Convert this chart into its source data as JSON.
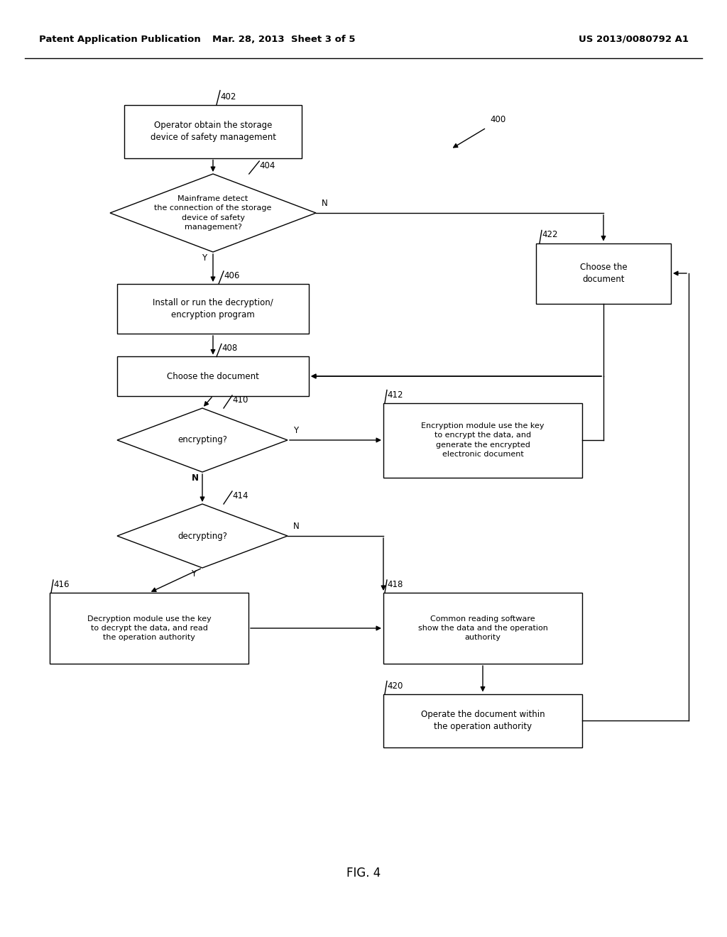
{
  "title_left": "Patent Application Publication",
  "title_mid": "Mar. 28, 2013  Sheet 3 of 5",
  "title_right": "US 2013/0080792 A1",
  "fig_label": "FIG. 4",
  "bg_color": "#ffffff",
  "line_color": "#000000",
  "font_size_node": 8.5,
  "font_size_header": 9.5,
  "font_size_label": 8.5,
  "nodes": {
    "402_text": "Operator obtain the storage\ndevice of safety management",
    "404_text": "Mainframe detect\nthe connection of the storage\ndevice of safety\nmanagement?",
    "406_text": "Install or run the decryption/\nencryption program",
    "408_text": "Choose the document",
    "410_text": "encrypting?",
    "412_text": "Encryption module use the key\nto encrypt the data, and\ngenerate the encrypted\nelectronic document",
    "414_text": "decrypting?",
    "416_text": "Decryption module use the key\nto decrypt the data, and read\nthe operation authority",
    "418_text": "Common reading software\nshow the data and the operation\nauthority",
    "420_text": "Operate the document within\nthe operation authority",
    "422_text": "Choose the\ndocument"
  }
}
